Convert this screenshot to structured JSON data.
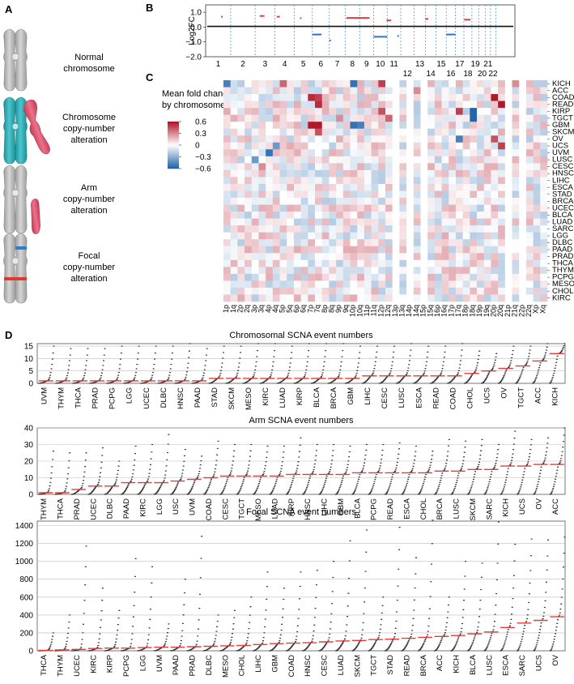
{
  "panels": {
    "A": {
      "letter": "A",
      "labels": [
        [
          "Normal",
          "chromosome"
        ],
        [
          "Chromosome",
          "copy-number",
          "alteration"
        ],
        [
          "Arm",
          "copy-number",
          "alteration"
        ],
        [
          "Focal",
          "copy-number",
          "alteration"
        ]
      ],
      "colors": {
        "chromosome": "#b8b8b8",
        "teal": "#2eaeb6",
        "pink": "#e0506e",
        "focal_blue": "#2f7fd0",
        "focal_red": "#e03a2a"
      }
    },
    "B": {
      "letter": "B",
      "ylabel": "Log2FC",
      "yticks": [
        1.0,
        0.0,
        -1.0,
        -2.0
      ],
      "ytick_labels": [
        "1.0",
        "0.0",
        "−1.0",
        "−2.0"
      ],
      "xtick_top": [
        "1",
        "2",
        "3",
        "4",
        "5",
        "6",
        "7",
        "8",
        "9",
        "10",
        "11",
        "13",
        "15",
        "17",
        "19",
        "21"
      ],
      "xtick_bottom": [
        "12",
        "14",
        "16",
        "18",
        "20",
        "22"
      ]
    },
    "C": {
      "letter": "C",
      "legend_title": [
        "Mean fold change intensity",
        "by chromosome arm"
      ],
      "legend_ticks": [
        "0.6",
        "0.3",
        "0",
        "−0.3",
        "−0.6"
      ],
      "cancers": [
        "KICH",
        "ACC",
        "COAD",
        "READ",
        "KIRP",
        "TGCT",
        "GBM",
        "SKCM",
        "OV",
        "UCS",
        "UVM",
        "LUSC",
        "CESC",
        "HNSC",
        "LIHC",
        "ESCA",
        "STAD",
        "BRCA",
        "UCEC",
        "BLCA",
        "LUAD",
        "SARC",
        "LGG",
        "DLBC",
        "PAAD",
        "PRAD",
        "THCA",
        "THYM",
        "PCPG",
        "MESO",
        "CHOL",
        "KIRC"
      ],
      "arms": [
        "1p",
        "1q",
        "2p",
        "2q",
        "3p",
        "3q",
        "4p",
        "4q",
        "5p",
        "5q",
        "6p",
        "6q",
        "7p",
        "7q",
        "8p",
        "8q",
        "9p",
        "9q",
        "10p",
        "10q",
        "11p",
        "11q",
        "12p",
        "12q",
        "13p",
        "13q",
        "14p",
        "14q",
        "15p",
        "15q",
        "16p",
        "16q",
        "17p",
        "17q",
        "18p",
        "18q",
        "19p",
        "19q",
        "20p",
        "20q",
        "21p",
        "21q",
        "22p",
        "22q",
        "Xp",
        "Xq"
      ],
      "empty_arms": [
        "13p",
        "14p",
        "15p",
        "21p",
        "22p"
      ]
    },
    "D": {
      "letter": "D",
      "charts": [
        {
          "title": "Chromosomal SCNA event numbers",
          "type": "scatter",
          "ylim": [
            0,
            16
          ],
          "yticks": [
            0,
            5,
            10,
            15
          ],
          "categories": [
            "UVM",
            "THYM",
            "THCA",
            "PRAD",
            "PCPG",
            "LGG",
            "UCEC",
            "DLBC",
            "HNSC",
            "PAAD",
            "STAD",
            "SKCM",
            "MESO",
            "KIRC",
            "LUAD",
            "KIRP",
            "BLCA",
            "BRCA",
            "GBM",
            "LIHC",
            "CESC",
            "LUSC",
            "ESCA",
            "READ",
            "COAD",
            "CHOL",
            "UCS",
            "OV",
            "TGCT",
            "ACC",
            "KICH"
          ],
          "medians": [
            1,
            1,
            1,
            1,
            1,
            1,
            1,
            1,
            1,
            1,
            2,
            2,
            2,
            2,
            2,
            2,
            2,
            2,
            2,
            3,
            3,
            3,
            3,
            3,
            3,
            4,
            5,
            6,
            7,
            9,
            12
          ],
          "maxima": [
            15,
            14,
            14,
            14,
            15,
            15,
            15,
            15,
            16,
            14,
            15,
            15,
            16,
            16,
            15,
            16,
            16,
            16,
            15,
            15,
            15,
            16,
            15,
            15,
            16,
            13,
            12,
            15,
            15,
            16,
            16
          ]
        },
        {
          "title": "Arm SCNA event numbers",
          "type": "scatter",
          "ylim": [
            0,
            40
          ],
          "yticks": [
            0,
            10,
            20,
            30,
            40
          ],
          "categories": [
            "THYM",
            "THCA",
            "PRAD",
            "UCEC",
            "DLBC",
            "PAAD",
            "KIRC",
            "LGG",
            "USC",
            "UVM",
            "COAD",
            "CESC",
            "TGCT",
            "MESO",
            "LUAD",
            "KIRP",
            "HNSC",
            "LIHC",
            "GBM",
            "BLCA",
            "PCPG",
            "READ",
            "ESCA",
            "CHOL",
            "BRCA",
            "LUSC",
            "SKCM",
            "SARC",
            "KICH",
            "UCS",
            "OV",
            "ACC"
          ],
          "medians": [
            1,
            1,
            3,
            5,
            5,
            7,
            7,
            7,
            8,
            9,
            10,
            11,
            11,
            11,
            11,
            12,
            12,
            12,
            12,
            13,
            13,
            13,
            13,
            13,
            14,
            14,
            15,
            15,
            17,
            17,
            18,
            18
          ],
          "maxima": [
            26,
            25,
            25,
            28,
            20,
            29,
            30,
            36,
            27,
            23,
            32,
            30,
            30,
            29,
            29,
            34,
            30,
            30,
            29,
            30,
            30,
            31,
            29,
            26,
            33,
            32,
            33,
            30,
            38,
            33,
            34,
            40
          ]
        },
        {
          "title": "Focal SCNA event numbers",
          "type": "scatter",
          "ylim": [
            0,
            1450
          ],
          "yticks": [
            0,
            200,
            400,
            600,
            800,
            1000,
            1200,
            1400
          ],
          "categories": [
            "THCA",
            "THYM",
            "UCEC",
            "KIRC",
            "KIRP",
            "PCPG",
            "LGG",
            "UVM",
            "PAAD",
            "PRAD",
            "DLBC",
            "MESO",
            "CHOL",
            "LIHC",
            "GBM",
            "COAD",
            "HNSC",
            "CESC",
            "LUAD",
            "SKCM",
            "TGCT",
            "STAD",
            "READ",
            "BRCA",
            "ACC",
            "KICH",
            "BLCA",
            "LUSC",
            "ESCA",
            "SARC",
            "UCS",
            "OV"
          ],
          "medians": [
            5,
            10,
            15,
            25,
            30,
            30,
            35,
            40,
            40,
            45,
            50,
            55,
            60,
            70,
            80,
            85,
            90,
            100,
            110,
            115,
            125,
            130,
            140,
            150,
            160,
            170,
            190,
            210,
            260,
            310,
            340,
            380
          ],
          "maxima": [
            200,
            400,
            1170,
            700,
            450,
            1030,
            940,
            300,
            800,
            1280,
            400,
            450,
            600,
            880,
            700,
            880,
            900,
            1000,
            1230,
            1350,
            600,
            1380,
            1040,
            1460,
            600,
            1000,
            980,
            1440,
            1190,
            1250,
            1240,
            1270
          ]
        }
      ],
      "colors": {
        "dots": "#333333",
        "median": "#e53a3a",
        "grid": "#bdbdbd"
      }
    }
  }
}
